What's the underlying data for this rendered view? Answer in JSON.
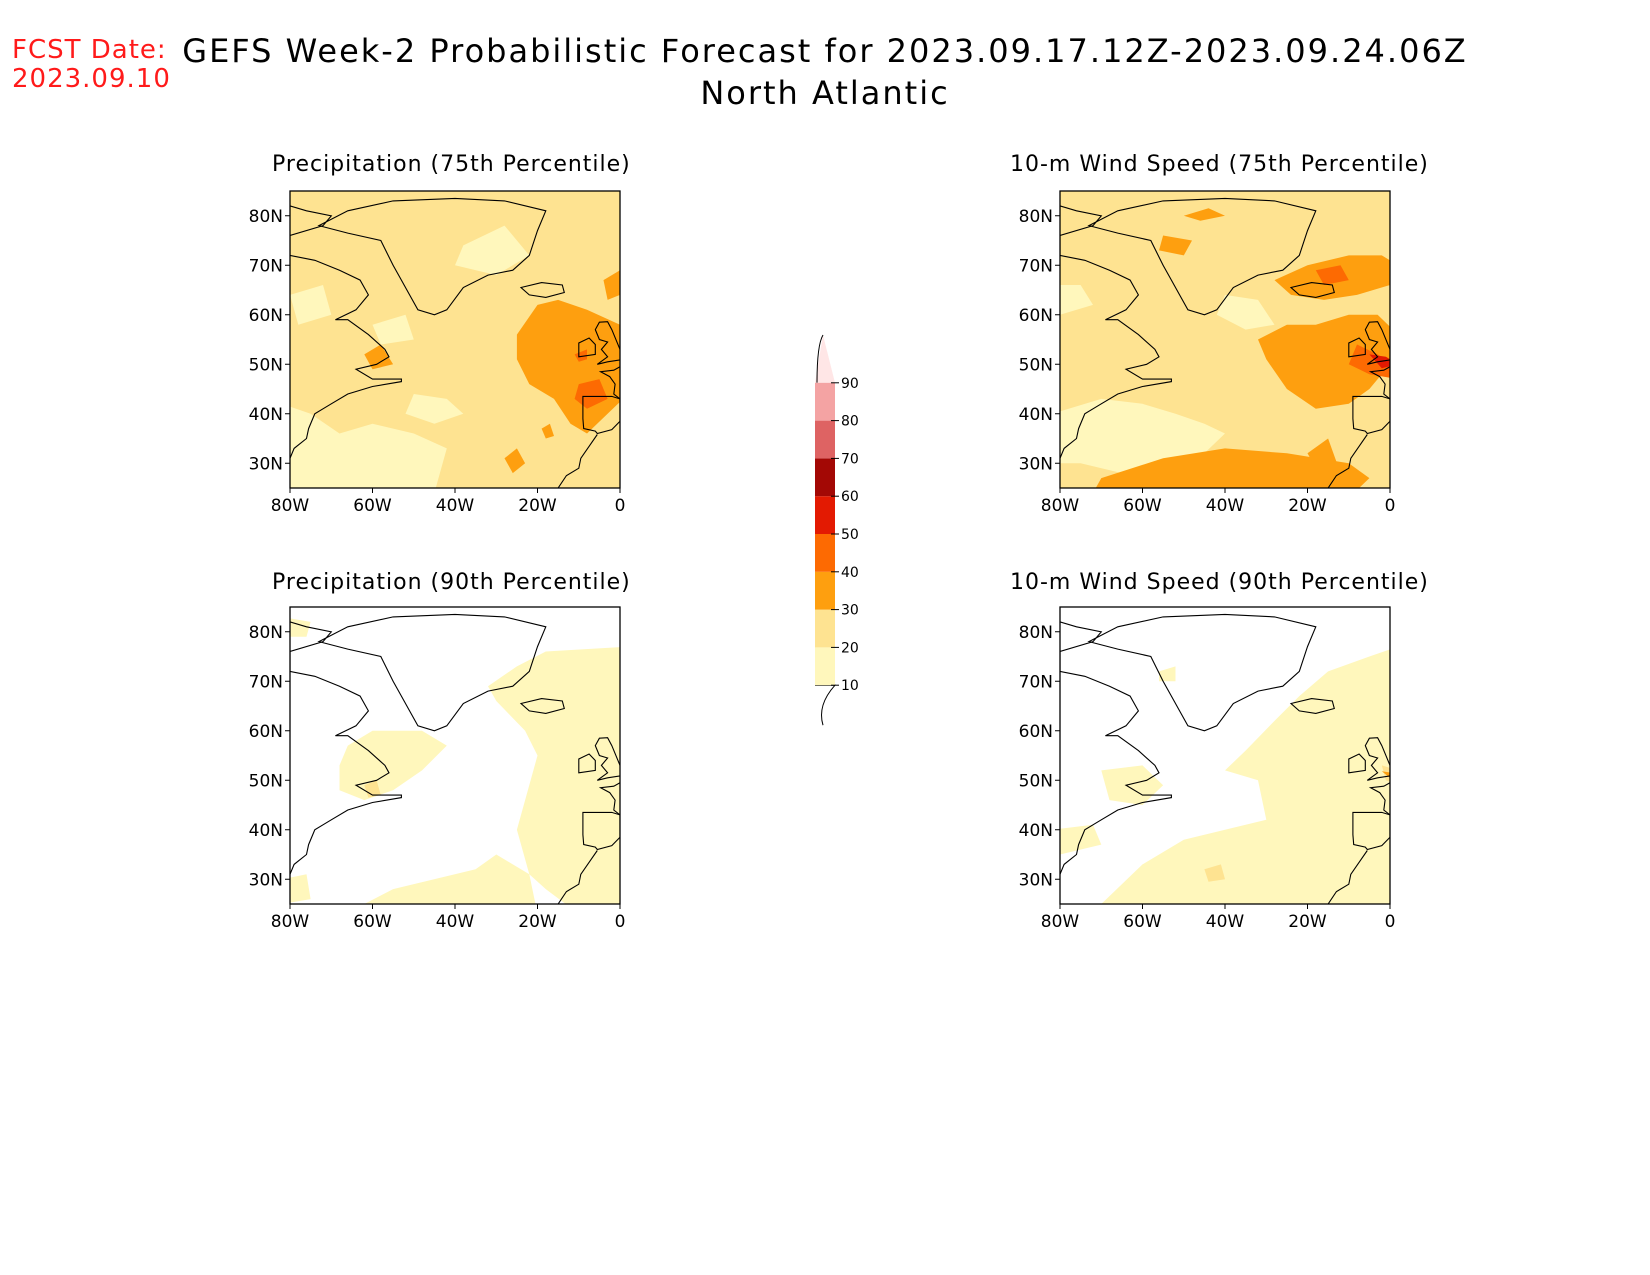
{
  "header": {
    "fcst_label": "FCST Date:",
    "fcst_date": "2023.09.10",
    "title": "GEFS Week-2 Probabilistic Forecast for 2023.09.17.12Z-2023.09.24.06Z",
    "subtitle": "North Atlantic"
  },
  "axes": {
    "lat_ticks": [
      "80N",
      "70N",
      "60N",
      "50N",
      "40N",
      "30N"
    ],
    "lon_ticks": [
      "80W",
      "60W",
      "40W",
      "20W",
      "0"
    ]
  },
  "panels": [
    {
      "id": "precip75",
      "title": "Precipitation (75th Percentile)"
    },
    {
      "id": "wind75",
      "title": "10-m Wind Speed (75th Percentile)"
    },
    {
      "id": "precip90",
      "title": "Precipitation (90th Percentile)"
    },
    {
      "id": "wind90",
      "title": "10-m Wind Speed (90th Percentile)"
    }
  ],
  "colorbar": {
    "levels": [
      "10",
      "20",
      "30",
      "40",
      "50",
      "60",
      "70",
      "80",
      "90"
    ],
    "colors": [
      "#fff7bc",
      "#fee391",
      "#fe9f0f",
      "#fd6a02",
      "#e31a02",
      "#a30805",
      "#de6363",
      "#f4a3a3",
      "#ffe6e6"
    ]
  }
}
